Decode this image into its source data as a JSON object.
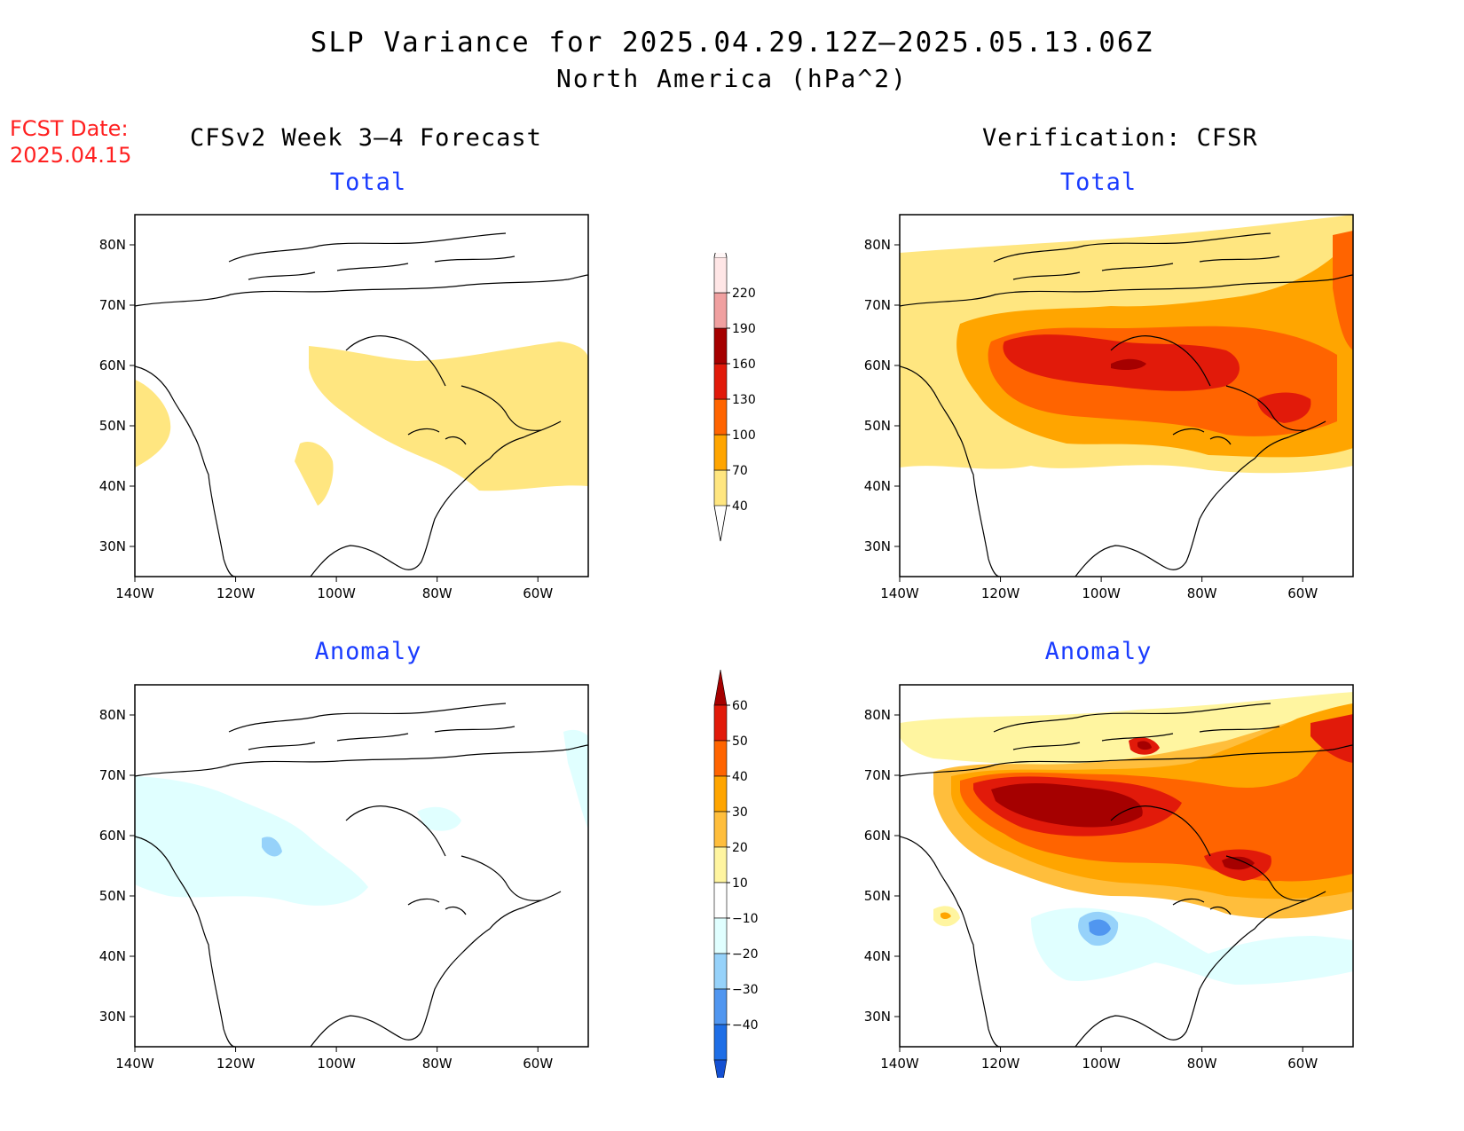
{
  "header": {
    "title": "SLP Variance for 2025.04.29.12Z–2025.05.13.06Z",
    "subtitle": "North America (hPa^2)",
    "fcst_label": "FCST Date:",
    "fcst_date": "2025.04.15",
    "left_heading": "CFSv2 Week 3–4 Forecast",
    "right_heading": "Verification: CFSR"
  },
  "panels": {
    "forecast_total": {
      "label": "Total"
    },
    "forecast_anomaly": {
      "label": "Anomaly"
    },
    "verif_total": {
      "label": "Total"
    },
    "verif_anomaly": {
      "label": "Anomaly"
    }
  },
  "axes": {
    "lon_labels": [
      "140W",
      "120W",
      "100W",
      "80W",
      "60W"
    ],
    "lat_labels": [
      "80N",
      "70N",
      "60N",
      "50N",
      "40N",
      "30N"
    ]
  },
  "colorbar_total": {
    "levels": [
      "40",
      "70",
      "100",
      "130",
      "160",
      "190",
      "220"
    ],
    "colors": [
      "#ffe680",
      "#ffa500",
      "#ff6400",
      "#e11a0a",
      "#a50000",
      "#f0a0a0",
      "#ffe6e6"
    ]
  },
  "colorbar_anomaly": {
    "levels": [
      "60",
      "50",
      "40",
      "30",
      "20",
      "10",
      "−10",
      "−20",
      "−30",
      "−40"
    ],
    "colors": [
      "#a50000",
      "#e11a0a",
      "#ff6400",
      "#ffa500",
      "#ffbe3c",
      "#fff5a0",
      "#ffffff",
      "#e0ffff",
      "#96d2fa",
      "#5096f0",
      "#1e6ee6",
      "#1450d2"
    ]
  }
}
